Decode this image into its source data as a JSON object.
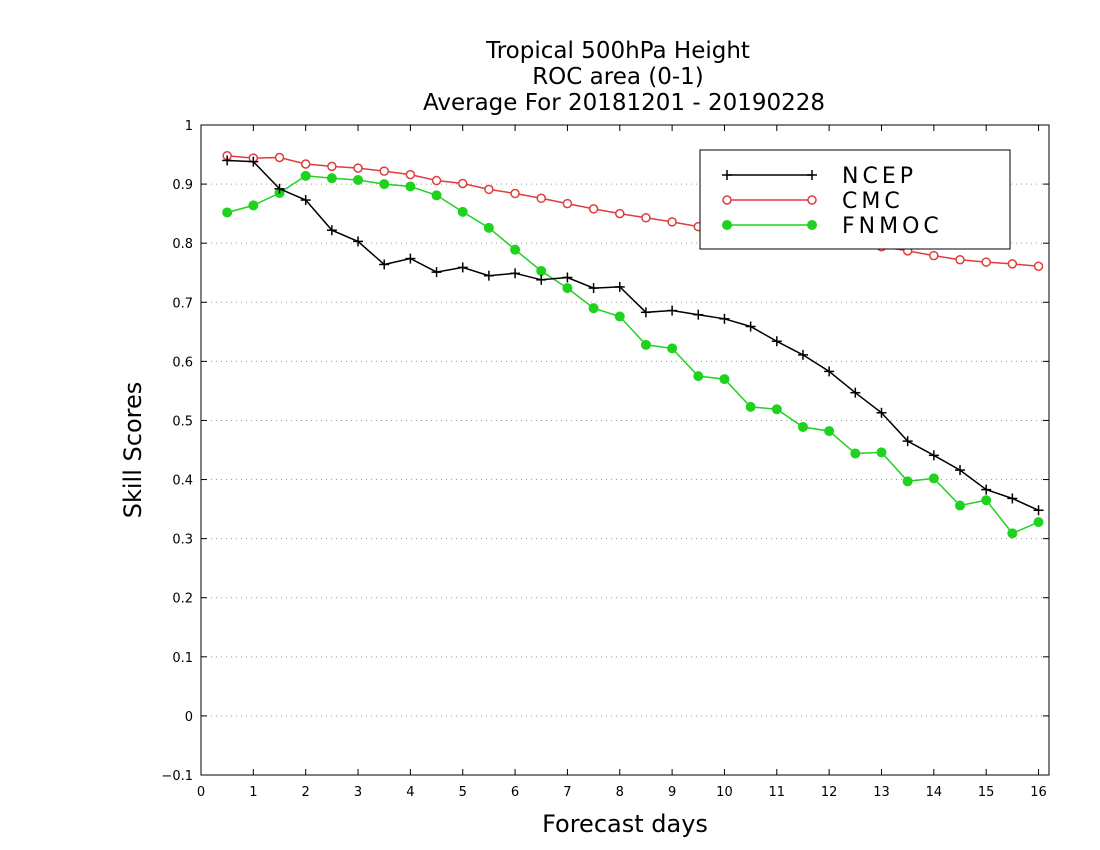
{
  "chart_data": {
    "type": "line",
    "title": [
      "Tropical 500hPa Height",
      "ROC area (0-1)",
      "Average For 20181201 - 20190228"
    ],
    "xlabel": "Forecast days",
    "ylabel": "Skill Scores",
    "xlim": [
      0,
      16.2
    ],
    "ylim": [
      -0.1,
      1
    ],
    "xticks": [
      0,
      1,
      2,
      3,
      4,
      5,
      6,
      7,
      8,
      9,
      10,
      11,
      12,
      13,
      14,
      15,
      16
    ],
    "yticks": [
      -0.1,
      0,
      0.1,
      0.2,
      0.3,
      0.4,
      0.5,
      0.6,
      0.7,
      0.8,
      0.9,
      1
    ],
    "ytick_labels": [
      "−0.1",
      "0",
      "0.1",
      "0.2",
      "0.3",
      "0.4",
      "0.5",
      "0.6",
      "0.7",
      "0.8",
      "0.9",
      "1"
    ],
    "grid": "horizontal dotted",
    "legend_position": "top-right",
    "x": [
      0.5,
      1,
      1.5,
      2,
      2.5,
      3,
      3.5,
      4,
      4.5,
      5,
      5.5,
      6,
      6.5,
      7,
      7.5,
      8,
      8.5,
      9,
      9.5,
      10,
      10.5,
      11,
      11.5,
      12,
      12.5,
      13,
      13.5,
      14,
      14.5,
      15,
      15.5,
      16
    ],
    "series": [
      {
        "name": "NCEP",
        "color": "#000000",
        "marker": "plus",
        "values": [
          0.94,
          0.938,
          0.892,
          0.873,
          0.822,
          0.803,
          0.764,
          0.774,
          0.751,
          0.759,
          0.745,
          0.749,
          0.738,
          0.742,
          0.724,
          0.726,
          0.683,
          0.686,
          0.679,
          0.672,
          0.659,
          0.634,
          0.611,
          0.583,
          0.547,
          0.513,
          0.465,
          0.441,
          0.416,
          0.383,
          0.368,
          0.348
        ]
      },
      {
        "name": "CMC",
        "color": "#e03c3c",
        "marker": "open-circle",
        "values": [
          0.948,
          0.944,
          0.945,
          0.934,
          0.93,
          0.927,
          0.922,
          0.916,
          0.906,
          0.901,
          0.891,
          0.884,
          0.876,
          0.867,
          0.858,
          0.85,
          0.843,
          0.836,
          0.828,
          0.824,
          0.817,
          0.812,
          0.809,
          0.804,
          0.799,
          0.794,
          0.787,
          0.779,
          0.772,
          0.768,
          0.765,
          0.761
        ]
      },
      {
        "name": "FNMOC",
        "color": "#1fd21f",
        "marker": "filled-circle",
        "values": [
          0.852,
          0.864,
          0.885,
          0.914,
          0.91,
          0.907,
          0.9,
          0.896,
          0.881,
          0.853,
          0.826,
          0.789,
          0.753,
          0.724,
          0.69,
          0.676,
          0.628,
          0.622,
          0.575,
          0.57,
          0.523,
          0.519,
          0.489,
          0.482,
          0.444,
          0.446,
          0.397,
          0.402,
          0.356,
          0.365,
          0.309,
          0.328
        ]
      }
    ]
  }
}
